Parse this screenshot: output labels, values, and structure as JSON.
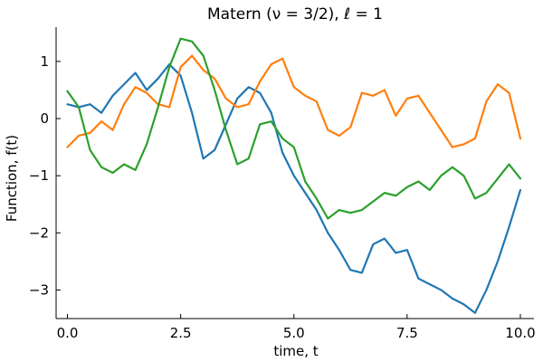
{
  "chart_data": {
    "type": "line",
    "title": "Matern (ν = 3/2), ℓ = 1",
    "xlabel": "time, t",
    "ylabel": "Function, f(t)",
    "xlim": [
      -0.25,
      10.3
    ],
    "ylim": [
      -3.5,
      1.6
    ],
    "xticks": [
      0.0,
      2.5,
      5.0,
      7.5,
      10.0
    ],
    "xtick_labels": [
      "0.0",
      "2.5",
      "5.0",
      "7.5",
      "10.0"
    ],
    "yticks": [
      1,
      0,
      -1,
      -2,
      -3
    ],
    "ytick_labels": [
      "1",
      "0",
      "−1",
      "−2",
      "−3"
    ],
    "grid": false,
    "legend": "none",
    "series": [
      {
        "color": "#1f77b4",
        "x": [
          0.0,
          0.25,
          0.5,
          0.75,
          1.0,
          1.25,
          1.5,
          1.75,
          2.0,
          2.25,
          2.5,
          2.75,
          3.0,
          3.25,
          3.5,
          3.75,
          4.0,
          4.25,
          4.5,
          4.75,
          5.0,
          5.25,
          5.5,
          5.75,
          6.0,
          6.25,
          6.5,
          6.75,
          7.0,
          7.25,
          7.5,
          7.75,
          8.0,
          8.25,
          8.5,
          8.75,
          9.0,
          9.25,
          9.5,
          9.75,
          10.0
        ],
        "y": [
          0.25,
          0.2,
          0.25,
          0.1,
          0.4,
          0.6,
          0.8,
          0.5,
          0.7,
          0.95,
          0.75,
          0.1,
          -0.7,
          -0.55,
          -0.1,
          0.35,
          0.55,
          0.45,
          0.1,
          -0.6,
          -1.0,
          -1.3,
          -1.6,
          -2.0,
          -2.3,
          -2.65,
          -2.7,
          -2.2,
          -2.1,
          -2.35,
          -2.3,
          -2.8,
          -2.9,
          -3.0,
          -3.15,
          -3.25,
          -3.4,
          -3.0,
          -2.5,
          -1.9,
          -1.25
        ]
      },
      {
        "color": "#ff7f0e",
        "x": [
          0.0,
          0.25,
          0.5,
          0.75,
          1.0,
          1.25,
          1.5,
          1.75,
          2.0,
          2.25,
          2.5,
          2.75,
          3.0,
          3.25,
          3.5,
          3.75,
          4.0,
          4.25,
          4.5,
          4.75,
          5.0,
          5.25,
          5.5,
          5.75,
          6.0,
          6.25,
          6.5,
          6.75,
          7.0,
          7.25,
          7.5,
          7.75,
          8.0,
          8.25,
          8.5,
          8.75,
          9.0,
          9.25,
          9.5,
          9.75,
          10.0
        ],
        "y": [
          -0.5,
          -0.3,
          -0.25,
          -0.05,
          -0.2,
          0.25,
          0.55,
          0.45,
          0.25,
          0.2,
          0.9,
          1.1,
          0.85,
          0.7,
          0.35,
          0.2,
          0.25,
          0.65,
          0.95,
          1.05,
          0.55,
          0.4,
          0.3,
          -0.2,
          -0.3,
          -0.15,
          0.45,
          0.4,
          0.5,
          0.05,
          0.35,
          0.4,
          0.1,
          -0.2,
          -0.5,
          -0.45,
          -0.35,
          0.3,
          0.6,
          0.45,
          -0.35
        ]
      },
      {
        "color": "#2ca02c",
        "x": [
          0.0,
          0.25,
          0.5,
          0.75,
          1.0,
          1.25,
          1.5,
          1.75,
          2.0,
          2.25,
          2.5,
          2.75,
          3.0,
          3.25,
          3.5,
          3.75,
          4.0,
          4.25,
          4.5,
          4.75,
          5.0,
          5.25,
          5.5,
          5.75,
          6.0,
          6.25,
          6.5,
          6.75,
          7.0,
          7.25,
          7.5,
          7.75,
          8.0,
          8.25,
          8.5,
          8.75,
          9.0,
          9.25,
          9.5,
          9.75,
          10.0
        ],
        "y": [
          0.48,
          0.2,
          -0.55,
          -0.85,
          -0.95,
          -0.8,
          -0.9,
          -0.45,
          0.2,
          0.9,
          1.4,
          1.35,
          1.1,
          0.5,
          -0.2,
          -0.8,
          -0.7,
          -0.1,
          -0.05,
          -0.35,
          -0.5,
          -1.1,
          -1.4,
          -1.75,
          -1.6,
          -1.65,
          -1.6,
          -1.45,
          -1.3,
          -1.35,
          -1.2,
          -1.1,
          -1.25,
          -1.0,
          -0.85,
          -1.0,
          -1.4,
          -1.3,
          -1.05,
          -0.8,
          -1.05
        ]
      }
    ]
  }
}
